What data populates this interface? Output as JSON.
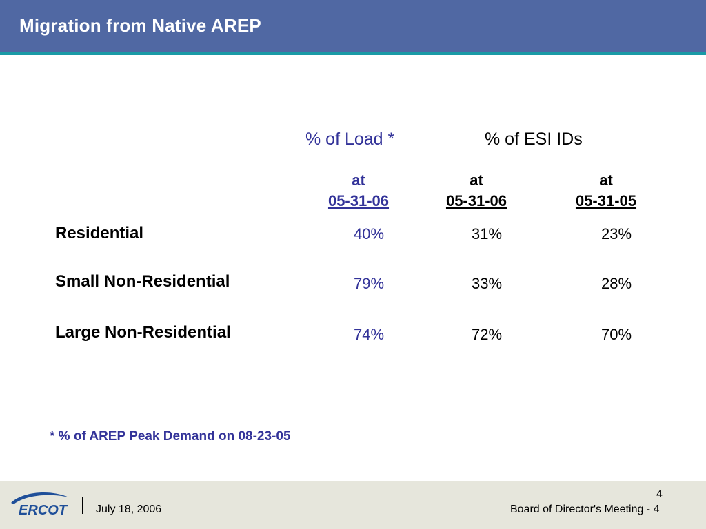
{
  "slide": {
    "title": "Migration from Native AREP"
  },
  "table": {
    "group_headers": {
      "load": "% of Load *",
      "esi": "% of ESI IDs"
    },
    "columns": [
      {
        "at_label": "at",
        "date": "05-31-06"
      },
      {
        "at_label": "at",
        "date": "05-31-06"
      },
      {
        "at_label": "at",
        "date": "05-31-05"
      }
    ],
    "rows": [
      {
        "label": "Residential",
        "values": [
          "40%",
          "31%",
          "23%"
        ]
      },
      {
        "label": "Small Non-Residential",
        "values": [
          "79%",
          "33%",
          "28%"
        ]
      },
      {
        "label": "Large Non-Residential",
        "values": [
          "74%",
          "72%",
          "70%"
        ]
      }
    ]
  },
  "footnote": "* % of AREP Peak Demand on 08-23-05",
  "footer": {
    "logo_text": "ERCOT",
    "date": "July 18, 2006",
    "meeting": "Board of Director's Meeting - 4",
    "page_number": "4"
  },
  "colors": {
    "title_bar": "#5068a3",
    "title_bar_accent": "#1a9aa6",
    "highlight_blue": "#333399",
    "footer_bg": "#e6e6dc"
  }
}
